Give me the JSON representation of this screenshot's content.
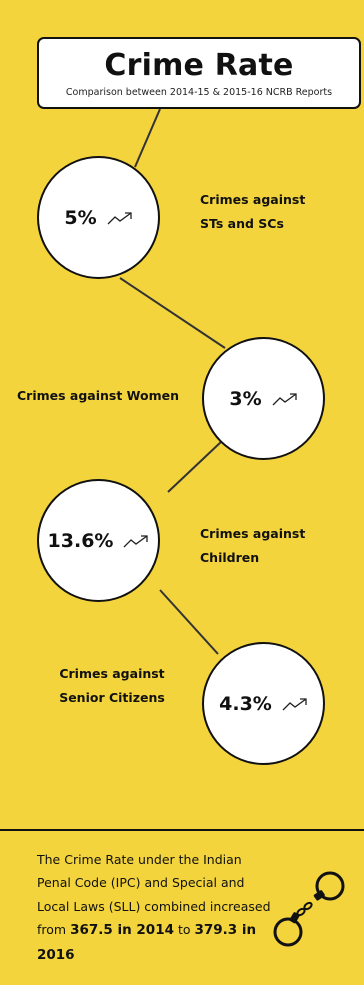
{
  "header": {
    "title": "Crime Rate",
    "subtitle": "Comparison between 2014-15 & 2015-16 NCRB Reports"
  },
  "items": [
    {
      "value": "5%",
      "label_line1": "Crimes against",
      "label_line2": "STs and SCs",
      "trend_icon": "trend-up-icon"
    },
    {
      "value": "3%",
      "label_line1": "Crimes against Women",
      "trend_icon": "trend-up-icon"
    },
    {
      "value": "13.6%",
      "label_line1": "Crimes against Children",
      "trend_icon": "trend-up-icon"
    },
    {
      "value": "4.3%",
      "label_line1": "Crimes against",
      "label_line2": "Senior Citizens",
      "trend_icon": "trend-up-icon"
    }
  ],
  "footer": {
    "text_part1": "The Crime Rate under the Indian Penal Code (IPC) and Special and Local Laws (SLL) combined increased from ",
    "from_value": "367.5 in 2014",
    "text_part2": " to ",
    "to_value": "379.3 in 2016",
    "icon": "handcuffs-icon"
  },
  "colors": {
    "background": "#f3d43d",
    "circle_fill": "#ffffff",
    "outline": "#111111"
  }
}
